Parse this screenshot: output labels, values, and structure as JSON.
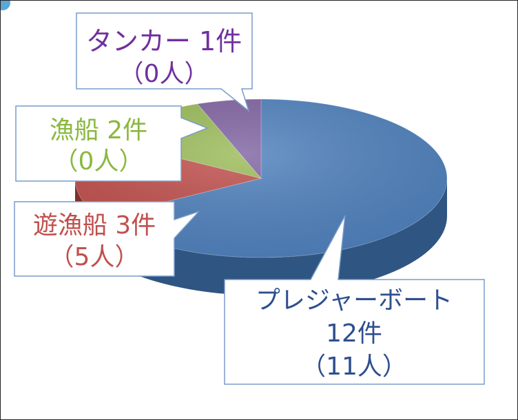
{
  "chart_data": {
    "type": "pie",
    "title": "",
    "slices": [
      {
        "label": "プレジャーボート",
        "value": 12,
        "count_label": "12件",
        "persons_label": "（11人）",
        "color": "#4f81bd",
        "color_dark": "#2f5582"
      },
      {
        "label": "遊漁船",
        "value": 3,
        "count_label": "3件",
        "persons_label": "（5人）",
        "color": "#c0504d",
        "color_dark": "#7f2f2d"
      },
      {
        "label": "漁船",
        "value": 2,
        "count_label": "2件",
        "persons_label": "（0人）",
        "color": "#9bbb59",
        "color_dark": "#64803a"
      },
      {
        "label": "タンカー",
        "value": 1,
        "count_label": "1件",
        "persons_label": "（0人）",
        "color": "#8064a2",
        "color_dark": "#54406e"
      }
    ]
  },
  "callouts": {
    "pleasure": {
      "line1": "プレジャーボート",
      "line2": "12件",
      "line3": "（11人）",
      "color": "#2e4f8f"
    },
    "yugyo": {
      "line1": "遊漁船 3件",
      "line2": "（5人）",
      "color": "#c0504d"
    },
    "gyosen": {
      "line1": "漁船 2件",
      "line2": "（0人）",
      "color": "#8ab83f"
    },
    "tanker": {
      "line1": "タンカー 1件",
      "line2": "（0人）",
      "color": "#7030a0"
    }
  }
}
